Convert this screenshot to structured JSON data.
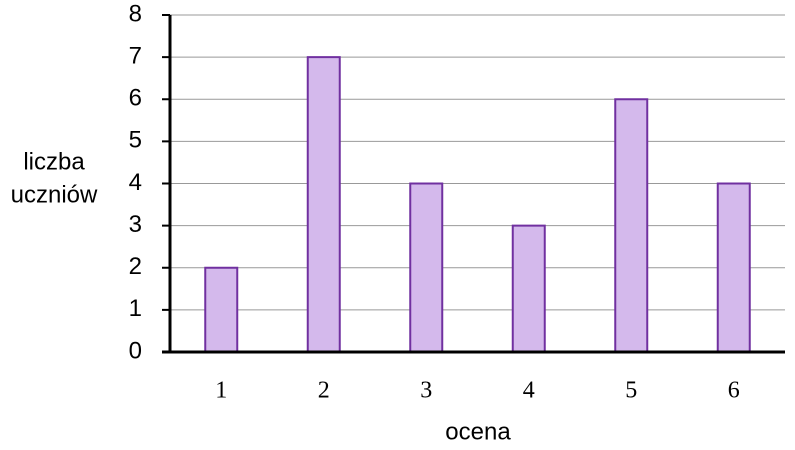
{
  "chart_data": {
    "type": "bar",
    "categories": [
      "1",
      "2",
      "3",
      "4",
      "5",
      "6"
    ],
    "values": [
      2,
      7,
      4,
      3,
      6,
      4
    ],
    "color": "#d4b9ec",
    "edge_color": "#7030a0",
    "ylim": [
      0,
      8
    ],
    "yticks": [
      0,
      1,
      2,
      3,
      4,
      5,
      6,
      7,
      8
    ],
    "grid": true,
    "xlabel": "ocena",
    "ylabel": [
      "liczba",
      "uczniów"
    ]
  }
}
